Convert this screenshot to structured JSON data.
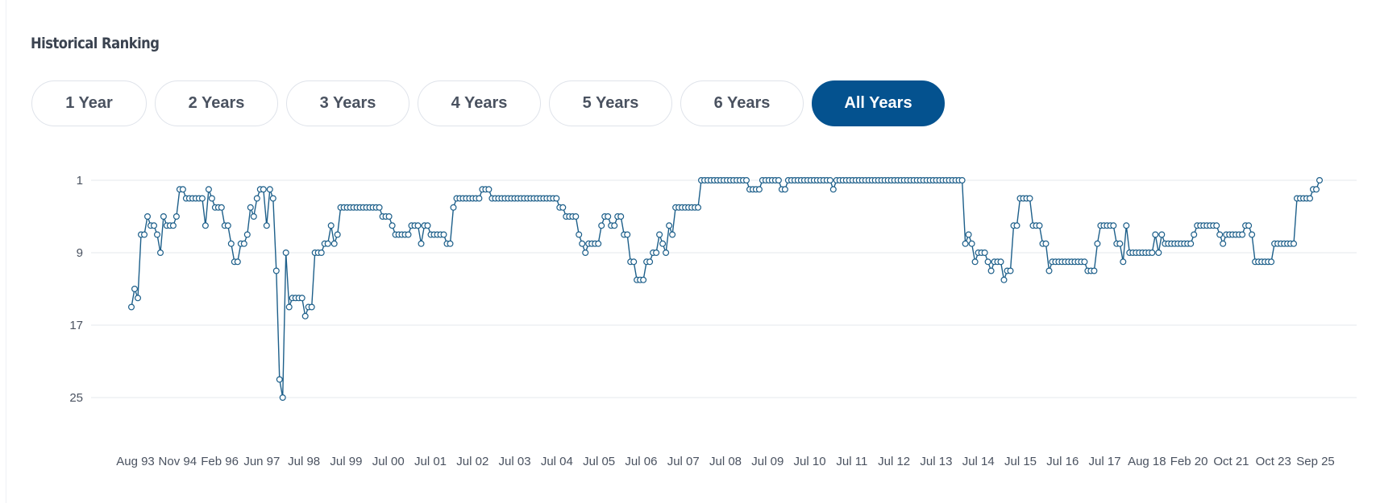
{
  "title": "Historical Ranking",
  "tabs": [
    {
      "label": "1 Year",
      "active": false
    },
    {
      "label": "2 Years",
      "active": false
    },
    {
      "label": "3 Years",
      "active": false
    },
    {
      "label": "4 Years",
      "active": false
    },
    {
      "label": "5 Years",
      "active": false
    },
    {
      "label": "6 Years",
      "active": false
    },
    {
      "label": "All Years",
      "active": true
    }
  ],
  "colors": {
    "accent": "#04528f",
    "line": "#1d5f8a",
    "grid": "#e6e9ee",
    "text": "#4a5260"
  },
  "chart_data": {
    "type": "line",
    "title": "",
    "xlabel": "",
    "ylabel": "",
    "y_reversed": true,
    "ylim": [
      1,
      25
    ],
    "yticks": [
      "1",
      "9",
      "17",
      "25"
    ],
    "grid": true,
    "x_tick_labels": [
      "Aug 93",
      "Nov 94",
      "Feb 96",
      "Jun 97",
      "Jul 98",
      "Jul 99",
      "Jul 00",
      "Jul 01",
      "Jul 02",
      "Jul 03",
      "Jul 04",
      "Jul 05",
      "Jul 06",
      "Jul 07",
      "Jul 08",
      "Jul 09",
      "Jul 10",
      "Jul 11",
      "Jul 12",
      "Jul 13",
      "Jul 14",
      "Jul 15",
      "Jul 16",
      "Jul 17",
      "Aug 18",
      "Feb 20",
      "Oct 21",
      "Oct 23",
      "Sep 25"
    ],
    "series": [
      {
        "values": [
          15,
          13,
          14,
          7,
          7,
          5,
          6,
          6,
          7,
          9,
          5,
          6,
          6,
          6,
          5,
          2,
          2,
          3,
          3,
          3,
          3,
          3,
          3,
          6,
          2,
          3,
          4,
          4,
          4,
          6,
          6,
          8,
          10,
          10,
          8,
          8,
          7,
          4,
          5,
          3,
          2,
          2,
          6,
          2,
          3,
          11,
          23,
          25,
          9,
          15,
          14,
          14,
          14,
          14,
          16,
          15,
          15,
          9,
          9,
          9,
          8,
          8,
          6,
          8,
          7,
          4,
          4,
          4,
          4,
          4,
          4,
          4,
          4,
          4,
          4,
          4,
          4,
          4,
          5,
          5,
          5,
          6,
          7,
          7,
          7,
          7,
          7,
          6,
          6,
          6,
          8,
          6,
          6,
          7,
          7,
          7,
          7,
          7,
          8,
          8,
          4,
          3,
          3,
          3,
          3,
          3,
          3,
          3,
          3,
          2,
          2,
          2,
          3,
          3,
          3,
          3,
          3,
          3,
          3,
          3,
          3,
          3,
          3,
          3,
          3,
          3,
          3,
          3,
          3,
          3,
          3,
          3,
          3,
          4,
          4,
          5,
          5,
          5,
          5,
          7,
          8,
          9,
          8,
          8,
          8,
          8,
          6,
          5,
          5,
          6,
          6,
          5,
          5,
          7,
          7,
          10,
          10,
          12,
          12,
          12,
          10,
          10,
          9,
          9,
          7,
          8,
          9,
          6,
          7,
          4,
          4,
          4,
          4,
          4,
          4,
          4,
          4,
          1,
          1,
          1,
          1,
          1,
          1,
          1,
          1,
          1,
          1,
          1,
          1,
          1,
          1,
          1,
          2,
          2,
          2,
          2,
          1,
          1,
          1,
          1,
          1,
          1,
          2,
          2,
          1,
          1,
          1,
          1,
          1,
          1,
          1,
          1,
          1,
          1,
          1,
          1,
          1,
          1,
          2,
          1,
          1,
          1,
          1,
          1,
          1,
          1,
          1,
          1,
          1,
          1,
          1,
          1,
          1,
          1,
          1,
          1,
          1,
          1,
          1,
          1,
          1,
          1,
          1,
          1,
          1,
          1,
          1,
          1,
          1,
          1,
          1,
          1,
          1,
          1,
          1,
          1,
          1,
          1,
          1,
          8,
          7,
          8,
          10,
          9,
          9,
          9,
          10,
          11,
          10,
          10,
          10,
          12,
          11,
          11,
          6,
          6,
          3,
          3,
          3,
          3,
          6,
          6,
          6,
          8,
          8,
          11,
          10,
          10,
          10,
          10,
          10,
          10,
          10,
          10,
          10,
          10,
          10,
          11,
          11,
          11,
          8,
          6,
          6,
          6,
          6,
          6,
          8,
          8,
          10,
          6,
          9,
          9,
          9,
          9,
          9,
          9,
          9,
          9,
          7,
          9,
          7,
          8,
          8,
          8,
          8,
          8,
          8,
          8,
          8,
          8,
          7,
          6,
          6,
          6,
          6,
          6,
          6,
          6,
          7,
          8,
          7,
          7,
          7,
          7,
          7,
          7,
          6,
          6,
          7,
          10,
          10,
          10,
          10,
          10,
          10,
          8,
          8,
          8,
          8,
          8,
          8,
          8,
          3,
          3,
          3,
          3,
          3,
          2,
          2,
          1
        ]
      }
    ]
  }
}
